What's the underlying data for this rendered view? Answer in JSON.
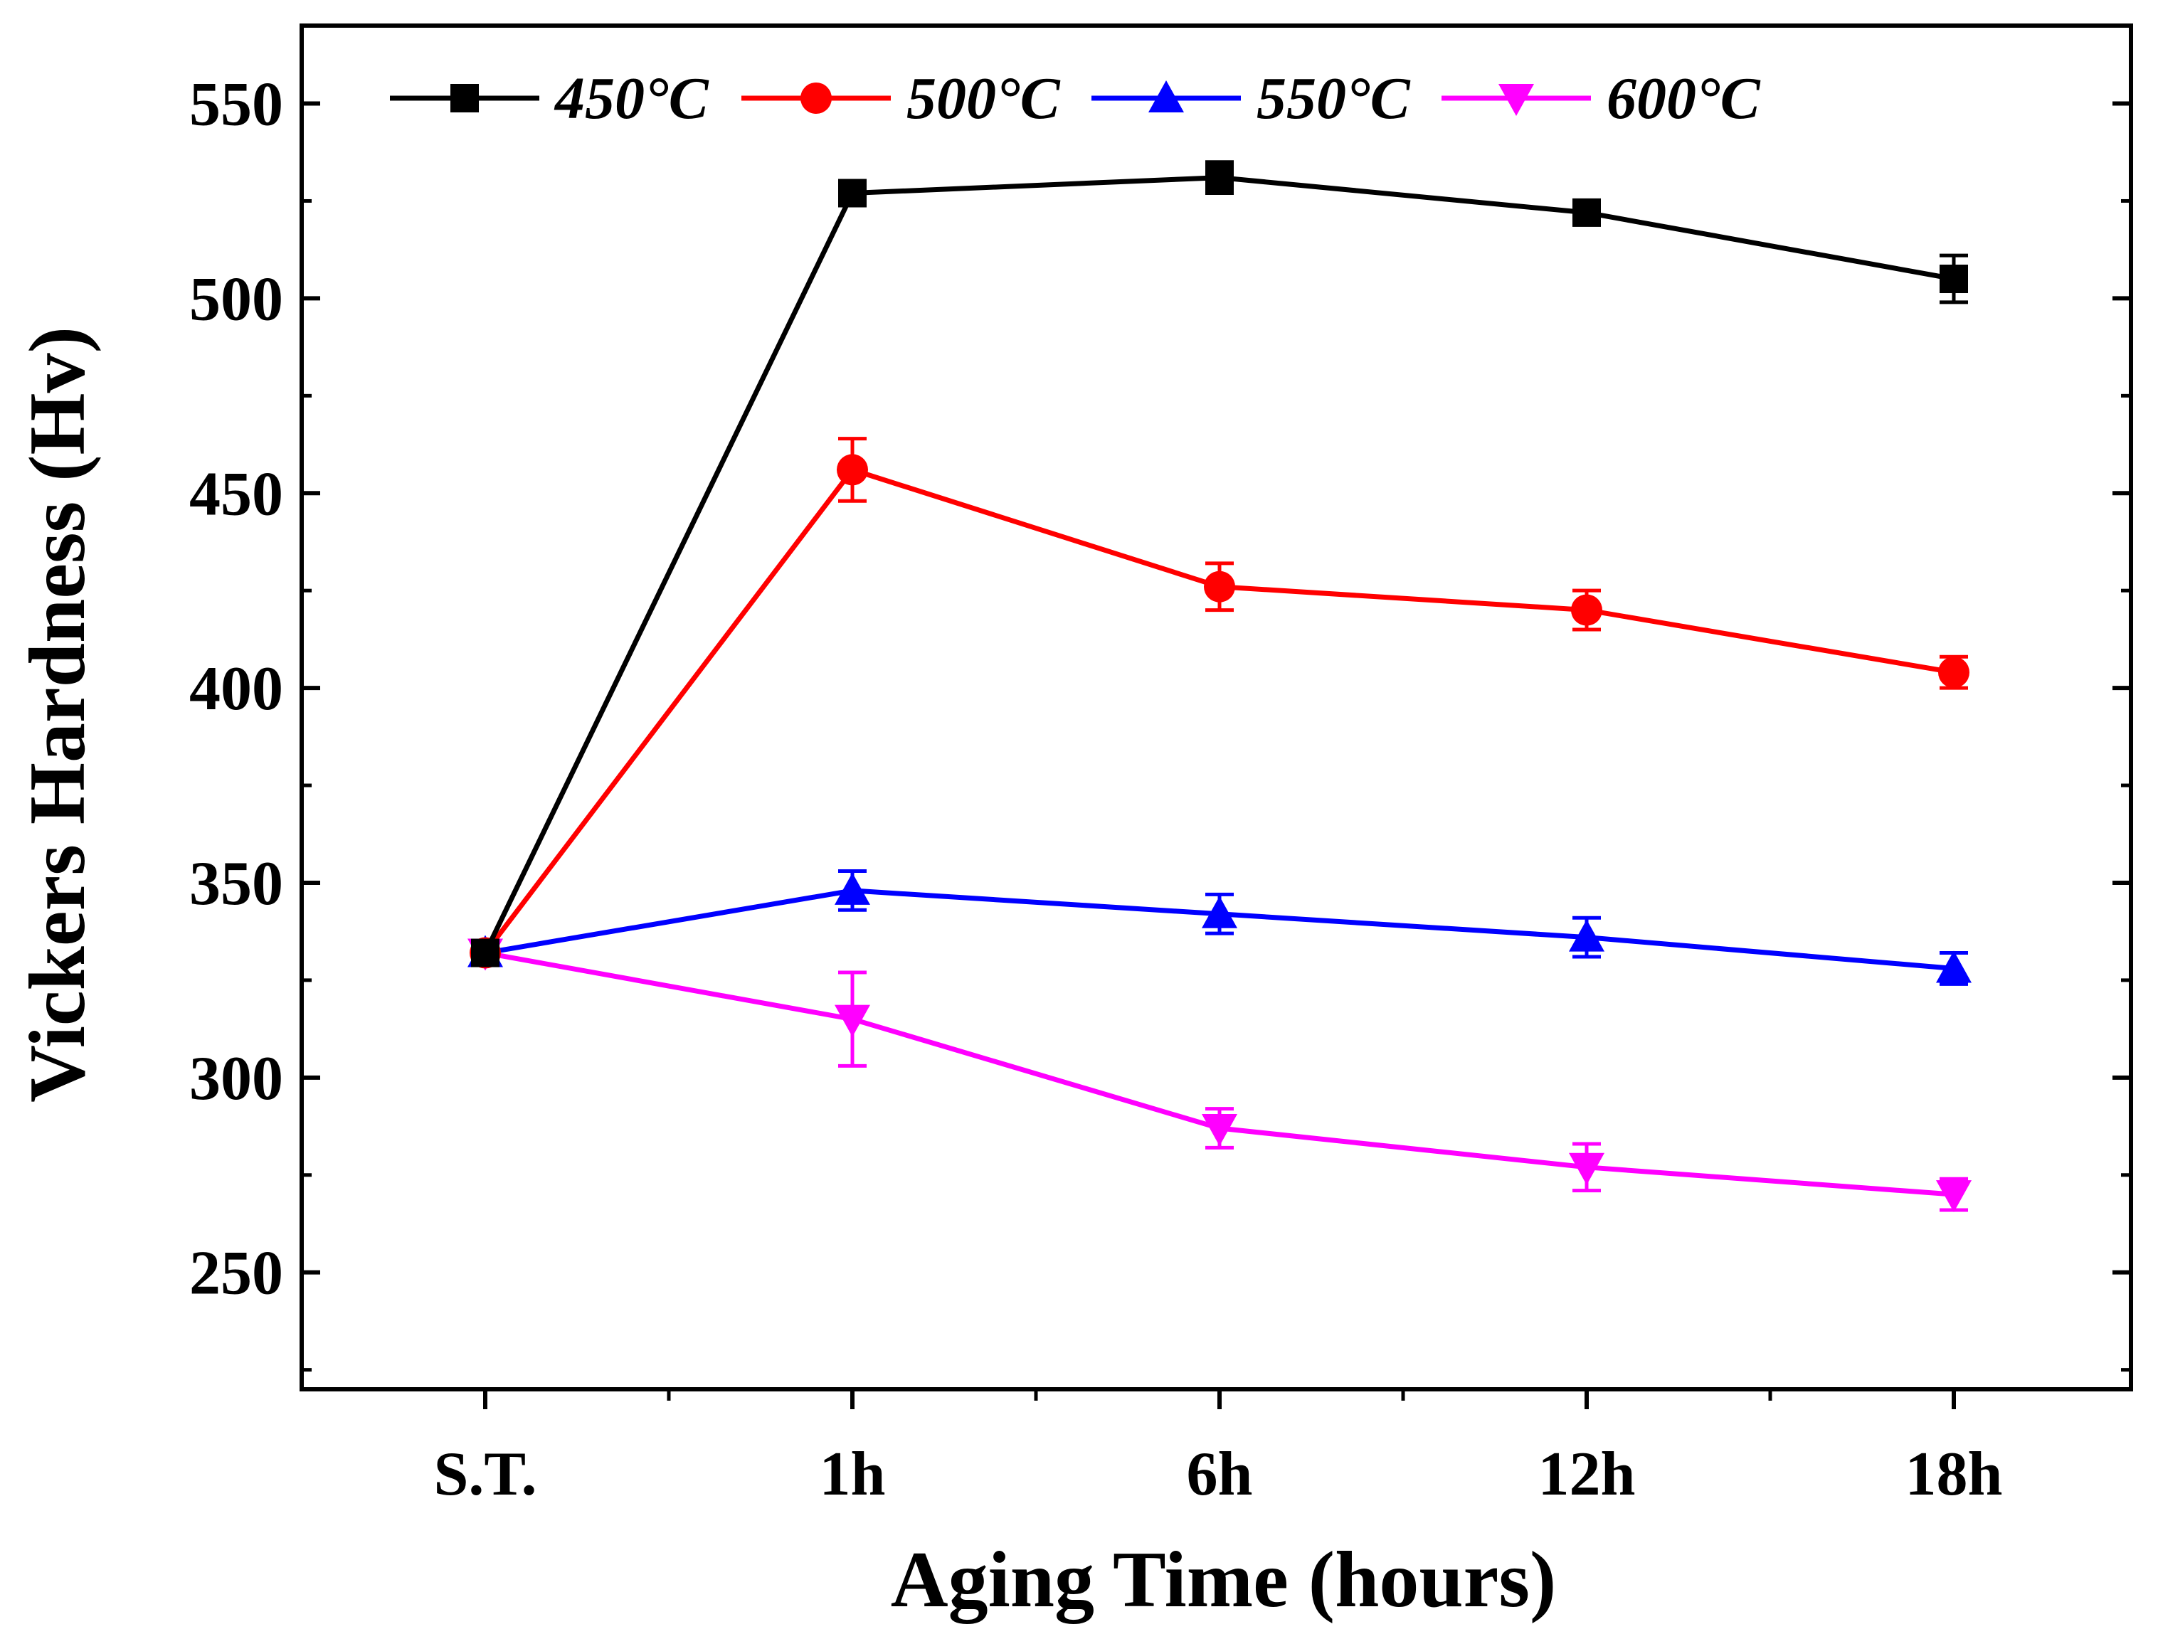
{
  "chart_data": {
    "type": "line",
    "title": "",
    "xlabel": "Aging Time (hours)",
    "ylabel": "Vickers Hardness (Hv)",
    "categories": [
      "S.T.",
      "1h",
      "6h",
      "12h",
      "18h"
    ],
    "ylim": [
      220,
      570
    ],
    "yticks": [
      250,
      300,
      350,
      400,
      450,
      500,
      550
    ],
    "grid": false,
    "legend_position": "top",
    "series": [
      {
        "name": "450°C",
        "color": "#000000",
        "marker": "square",
        "values": [
          332,
          527,
          531,
          522,
          505
        ],
        "errors": [
          3,
          3,
          4,
          2,
          6
        ]
      },
      {
        "name": "500°C",
        "color": "#ff0000",
        "marker": "circle",
        "values": [
          332,
          456,
          426,
          420,
          404
        ],
        "errors": [
          3,
          8,
          6,
          5,
          4
        ]
      },
      {
        "name": "550°C",
        "color": "#0000ff",
        "marker": "triangle-up",
        "values": [
          332,
          348,
          342,
          336,
          328
        ],
        "errors": [
          3,
          5,
          5,
          5,
          4
        ]
      },
      {
        "name": "600°C",
        "color": "#ff00ff",
        "marker": "triangle-down",
        "values": [
          332,
          315,
          287,
          277,
          270
        ],
        "errors": [
          3,
          12,
          5,
          6,
          4
        ]
      }
    ]
  }
}
